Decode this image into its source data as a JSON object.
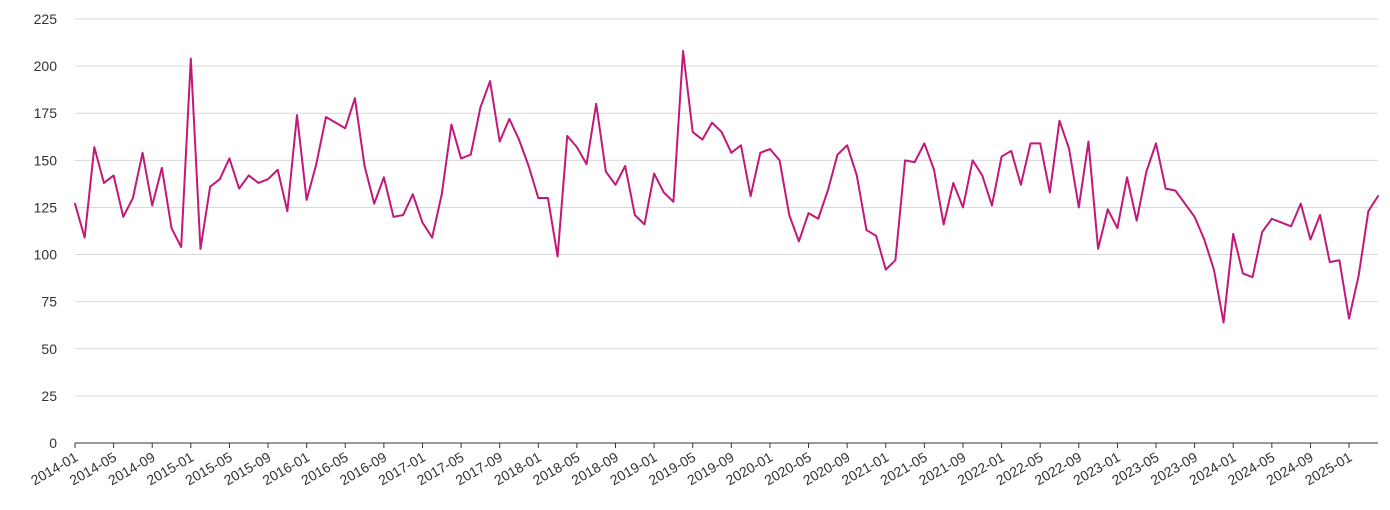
{
  "chart_data": {
    "type": "line",
    "title": "",
    "xlabel": "",
    "ylabel": "",
    "ylim": [
      0,
      225
    ],
    "yticks": [
      0,
      25,
      50,
      75,
      100,
      125,
      150,
      175,
      200,
      225
    ],
    "xticks": [
      "2014-01",
      "2014-05",
      "2014-09",
      "2015-01",
      "2015-05",
      "2015-09",
      "2016-01",
      "2016-05",
      "2016-09",
      "2017-01",
      "2017-05",
      "2017-09",
      "2018-01",
      "2018-05",
      "2018-09",
      "2019-01",
      "2019-05",
      "2019-09",
      "2020-01",
      "2020-05",
      "2020-09",
      "2021-01",
      "2021-05",
      "2021-09",
      "2022-01",
      "2022-05",
      "2022-09",
      "2023-01",
      "2023-05",
      "2023-09",
      "2024-01",
      "2024-05",
      "2024-09",
      "2025-01"
    ],
    "grid": true,
    "line_color": "#c2187b",
    "x_start": "2014-01",
    "series": [
      {
        "name": "",
        "values": [
          127,
          109,
          157,
          138,
          142,
          120,
          130,
          154,
          126,
          146,
          114,
          104,
          204,
          103,
          136,
          140,
          151,
          135,
          142,
          138,
          140,
          145,
          123,
          174,
          129,
          148,
          173,
          170,
          167,
          183,
          147,
          127,
          141,
          120,
          121,
          132,
          117,
          109,
          132,
          169,
          151,
          153,
          178,
          192,
          160,
          172,
          161,
          147,
          130,
          130,
          99,
          163,
          157,
          148,
          180,
          144,
          137,
          147,
          121,
          116,
          143,
          133,
          128,
          208,
          165,
          161,
          170,
          165,
          154,
          158,
          131,
          154,
          156,
          150,
          121,
          107,
          122,
          119,
          134,
          153,
          158,
          142,
          113,
          110,
          92,
          97,
          150,
          149,
          159,
          145,
          116,
          138,
          125,
          150,
          142,
          126,
          152,
          155,
          137,
          159,
          159,
          133,
          171,
          156,
          125,
          160,
          103,
          124,
          114,
          141,
          118,
          144,
          159,
          135,
          134,
          127,
          120,
          108,
          92,
          64,
          111,
          90,
          88,
          112,
          119,
          117,
          115,
          127,
          108,
          121,
          96,
          97,
          66,
          89,
          123,
          131
        ]
      }
    ]
  }
}
